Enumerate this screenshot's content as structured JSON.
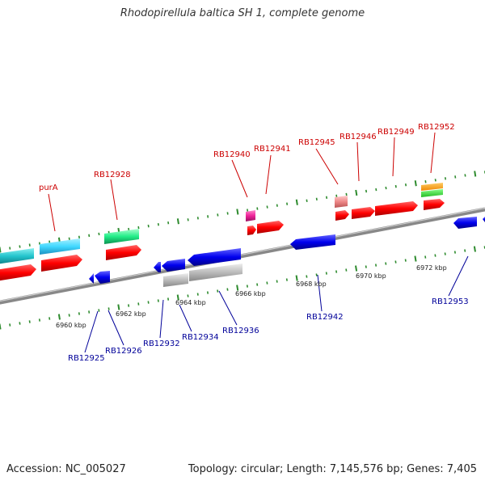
{
  "header": {
    "title": "Rhodopirellula baltica SH 1, complete genome"
  },
  "footer": {
    "accession": "Accession: NC_005027",
    "summary": "Topology: circular; Length: 7,145,576 bp; Genes: 7,405"
  },
  "colors": {
    "forward_label": "#cc0000",
    "reverse_label": "#000099",
    "backbone": "#888888",
    "tick": "#2e8b2e"
  },
  "kbp_labels": [
    "6960 kbp",
    "6962 kbp",
    "6964 kbp",
    "6966 kbp",
    "6968 kbp",
    "6970 kbp",
    "6972 kbp"
  ],
  "forward_genes": [
    "purA",
    "RB12928",
    "RB12940",
    "RB12941",
    "RB12945",
    "RB12946",
    "RB12949",
    "RB12952"
  ],
  "reverse_genes": [
    "RB12925",
    "RB12926",
    "RB12932",
    "RB12934",
    "RB12936",
    "RB12942",
    "RB12953"
  ],
  "features": [
    {
      "track": "forward-inner",
      "color": "#ff0000",
      "gene": "purA"
    },
    {
      "track": "forward-inner",
      "color": "#ff0000",
      "gene": "RB12928"
    },
    {
      "track": "forward-inner",
      "color": "#ff0000",
      "gene": "RB12940"
    },
    {
      "track": "forward-inner",
      "color": "#ff0000",
      "gene": "RB12941"
    },
    {
      "track": "forward-inner",
      "color": "#ff0000",
      "gene": "RB12945"
    },
    {
      "track": "forward-inner",
      "color": "#ff0000",
      "gene": "RB12946"
    },
    {
      "track": "forward-inner",
      "color": "#ff0000",
      "gene": "RB12949"
    },
    {
      "track": "forward-inner",
      "color": "#ff0000",
      "gene": "RB12952"
    },
    {
      "track": "reverse-inner",
      "color": "#0000ee",
      "gene": "RB12932"
    },
    {
      "track": "reverse-inner",
      "color": "#0000ee",
      "gene": "RB12934"
    },
    {
      "track": "reverse-inner",
      "color": "#0000ee",
      "gene": "RB12942"
    },
    {
      "track": "reverse-inner",
      "color": "#0000ee",
      "gene": "RB12953"
    },
    {
      "track": "forward-outer",
      "color": "#40d8ff",
      "gene": "cds-cyan"
    },
    {
      "track": "forward-outer",
      "color": "#33ff99",
      "gene": "cds-green"
    },
    {
      "track": "forward-outer",
      "color": "#ff33aa",
      "gene": "cds-magenta"
    },
    {
      "track": "forward-outer",
      "color": "#ff9999",
      "gene": "cds-pink"
    },
    {
      "track": "forward-outer",
      "color": "#ff9900",
      "gene": "cds-orange"
    },
    {
      "track": "reverse-outer",
      "color": "#bbbbbb",
      "gene": "cds-grey"
    }
  ]
}
